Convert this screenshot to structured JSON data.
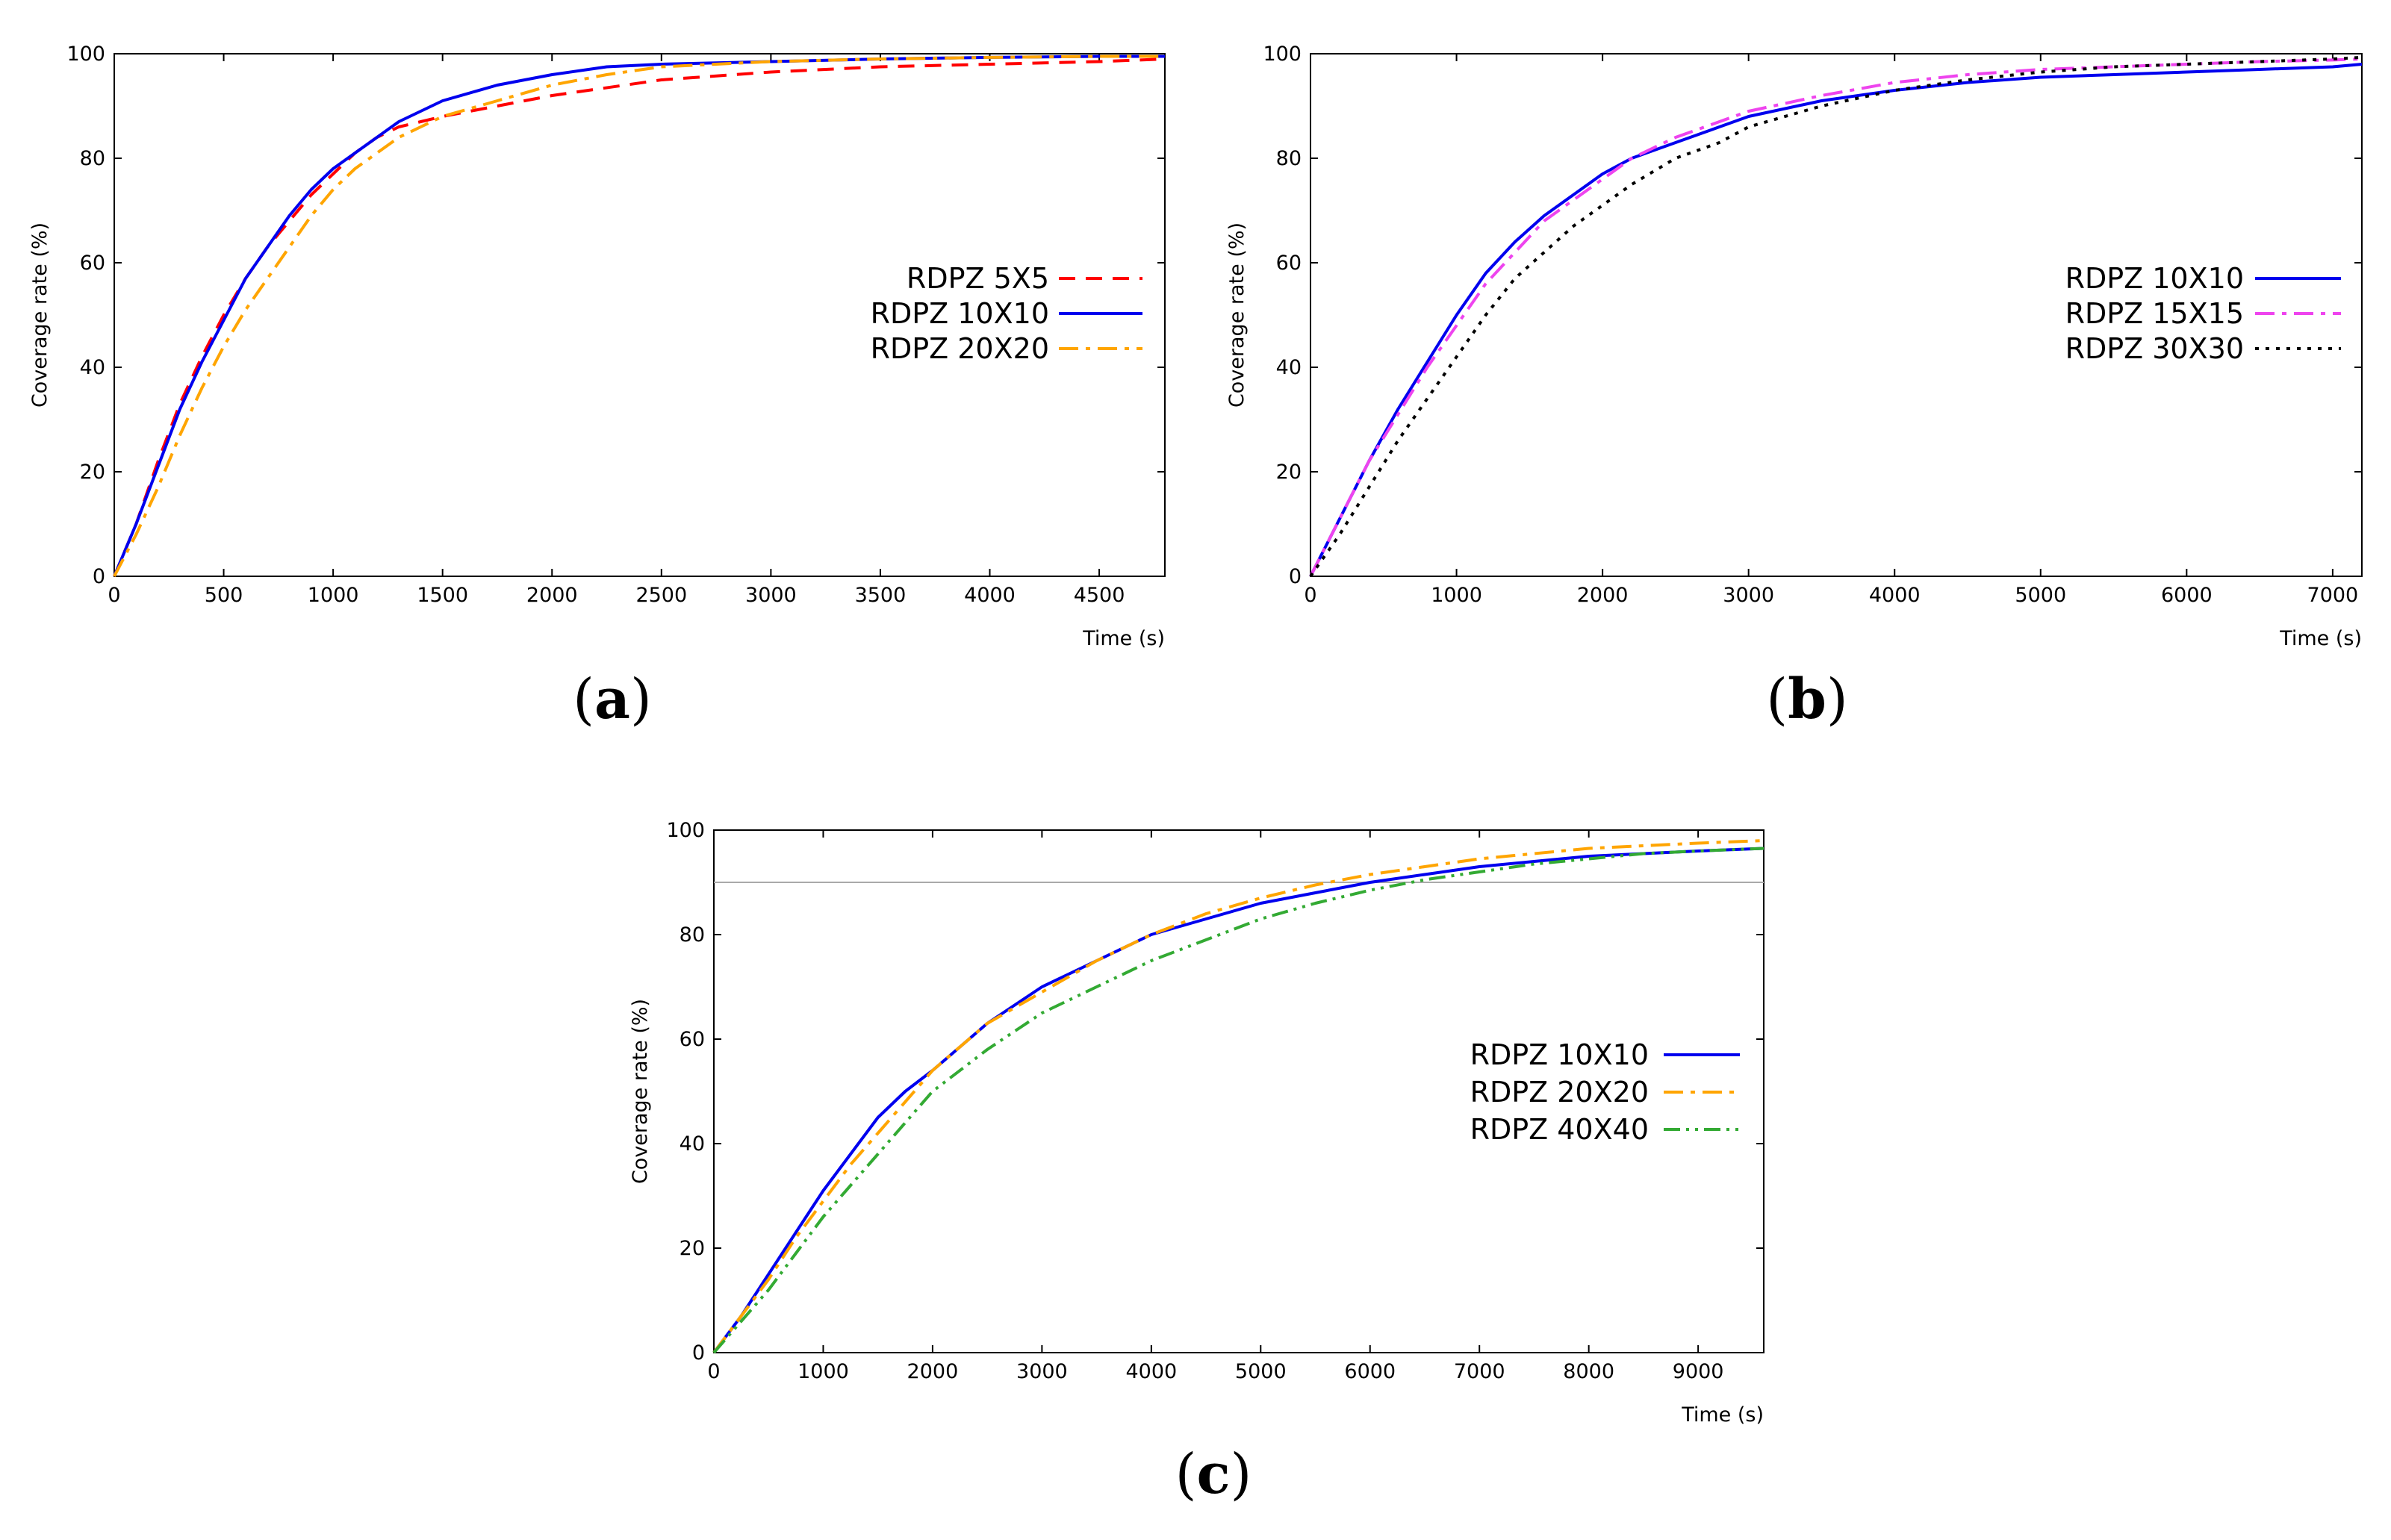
{
  "chart_data": [
    {
      "type": "line",
      "panel_label": "a",
      "xlabel": "Time (s)",
      "ylabel": "Coverage rate (%)",
      "xlim": [
        0,
        4800
      ],
      "ylim": [
        0,
        100
      ],
      "xticks": [
        0,
        500,
        1000,
        1500,
        2000,
        2500,
        3000,
        3500,
        4000,
        4500
      ],
      "yticks": [
        0,
        20,
        40,
        60,
        80,
        100
      ],
      "grid": false,
      "legend_position": "center-right",
      "reference_line": null,
      "series": [
        {
          "name": "RDPZ 5X5",
          "color": "#ff0000",
          "style": "dashed",
          "x": [
            0,
            100,
            200,
            300,
            400,
            500,
            600,
            700,
            800,
            900,
            1000,
            1100,
            1200,
            1300,
            1400,
            1500,
            1750,
            2000,
            2500,
            3000,
            3500,
            4000,
            4500,
            4800
          ],
          "y": [
            0,
            10,
            22,
            33,
            42,
            50,
            57,
            63,
            68,
            73,
            77,
            81,
            84,
            86,
            87,
            88,
            90,
            92,
            95,
            96.5,
            97.5,
            98,
            98.5,
            99
          ]
        },
        {
          "name": "RDPZ 10X10",
          "color": "#0000ee",
          "style": "solid",
          "x": [
            0,
            100,
            200,
            300,
            400,
            500,
            600,
            700,
            800,
            900,
            1000,
            1100,
            1200,
            1300,
            1400,
            1500,
            1750,
            2000,
            2250,
            2500,
            3000,
            3500,
            4000,
            4500,
            4800
          ],
          "y": [
            0,
            10,
            21,
            32,
            41,
            49,
            57,
            63,
            69,
            74,
            78,
            81,
            84,
            87,
            89,
            91,
            94,
            96,
            97.5,
            98,
            98.5,
            99,
            99.3,
            99.5,
            99.5
          ]
        },
        {
          "name": "RDPZ 20X20",
          "color": "#ffa500",
          "style": "dashdot",
          "x": [
            0,
            100,
            200,
            300,
            400,
            500,
            600,
            700,
            800,
            900,
            1000,
            1100,
            1200,
            1300,
            1400,
            1500,
            1750,
            2000,
            2250,
            2500,
            3000,
            3500,
            4000,
            4500,
            4800
          ],
          "y": [
            0,
            8,
            17,
            27,
            36,
            44,
            51,
            57,
            63,
            69,
            74,
            78,
            81,
            84,
            86,
            88,
            91,
            94,
            96,
            97.5,
            98.5,
            99,
            99.3,
            99.5,
            99.5
          ]
        }
      ]
    },
    {
      "type": "line",
      "panel_label": "b",
      "xlabel": "Time (s)",
      "ylabel": "Coverage rate (%)",
      "xlim": [
        0,
        7200
      ],
      "ylim": [
        0,
        100
      ],
      "xticks": [
        0,
        1000,
        2000,
        3000,
        4000,
        5000,
        6000,
        7000
      ],
      "yticks": [
        0,
        20,
        40,
        60,
        80,
        100
      ],
      "grid": false,
      "legend_position": "center-right",
      "reference_line": null,
      "series": [
        {
          "name": "RDPZ 10X10",
          "color": "#0000ee",
          "style": "solid",
          "x": [
            0,
            200,
            400,
            600,
            800,
            1000,
            1200,
            1400,
            1600,
            1800,
            2000,
            2200,
            2500,
            2800,
            3000,
            3500,
            4000,
            4500,
            5000,
            5500,
            6000,
            6500,
            7000,
            7200
          ],
          "y": [
            0,
            11,
            22,
            32,
            41,
            50,
            58,
            64,
            69,
            73,
            77,
            80,
            83,
            86,
            88,
            91,
            93,
            94.5,
            95.5,
            96,
            96.5,
            97,
            97.5,
            98
          ]
        },
        {
          "name": "RDPZ 15X15",
          "color": "#ee44ee",
          "style": "dashdot",
          "x": [
            0,
            200,
            400,
            600,
            800,
            1000,
            1200,
            1400,
            1600,
            1800,
            2000,
            2200,
            2500,
            2800,
            3000,
            3500,
            4000,
            4500,
            5000,
            5500,
            6000,
            6500,
            7000,
            7200
          ],
          "y": [
            0,
            11,
            22,
            31,
            40,
            48,
            56,
            62,
            68,
            72,
            76,
            80,
            84,
            87,
            89,
            92,
            94.5,
            96,
            97,
            97.5,
            98,
            98.5,
            98.8,
            99
          ]
        },
        {
          "name": "RDPZ 30X30",
          "color": "#000000",
          "style": "dotted",
          "x": [
            0,
            200,
            400,
            600,
            800,
            1000,
            1200,
            1400,
            1600,
            1800,
            2000,
            2200,
            2500,
            2800,
            3000,
            3500,
            4000,
            4500,
            5000,
            5500,
            6000,
            6500,
            7000,
            7200
          ],
          "y": [
            0,
            8,
            17,
            26,
            34,
            42,
            50,
            57,
            62,
            67,
            71,
            75,
            80,
            83,
            86,
            90,
            93,
            95,
            96.5,
            97.5,
            98,
            98.5,
            99,
            99.3
          ]
        }
      ]
    },
    {
      "type": "line",
      "panel_label": "c",
      "xlabel": "Time (s)",
      "ylabel": "Coverage rate (%)",
      "xlim": [
        0,
        9600
      ],
      "ylim": [
        0,
        100
      ],
      "xticks": [
        0,
        1000,
        2000,
        3000,
        4000,
        5000,
        6000,
        7000,
        8000,
        9000
      ],
      "yticks": [
        0,
        20,
        40,
        60,
        80,
        100
      ],
      "grid": false,
      "legend_position": "center-right",
      "reference_line": 90,
      "series": [
        {
          "name": "RDPZ 10X10",
          "color": "#0000ee",
          "style": "solid",
          "x": [
            0,
            250,
            500,
            750,
            1000,
            1250,
            1500,
            1750,
            2000,
            2500,
            3000,
            3500,
            4000,
            4500,
            5000,
            5500,
            6000,
            6500,
            7000,
            7500,
            8000,
            8500,
            9000,
            9600
          ],
          "y": [
            0,
            7,
            15,
            23,
            31,
            38,
            45,
            50,
            54,
            63,
            70,
            75,
            80,
            83,
            86,
            88,
            90,
            91.5,
            93,
            94,
            95,
            95.5,
            96,
            96.5
          ]
        },
        {
          "name": "RDPZ 20X20",
          "color": "#ffa500",
          "style": "dashdot",
          "x": [
            0,
            250,
            500,
            750,
            1000,
            1250,
            1500,
            1750,
            2000,
            2500,
            3000,
            3500,
            4000,
            4500,
            5000,
            5500,
            6000,
            6500,
            7000,
            7500,
            8000,
            8500,
            9000,
            9600
          ],
          "y": [
            0,
            7,
            14,
            22,
            29,
            36,
            42,
            48,
            54,
            63,
            69,
            75,
            80,
            84,
            87,
            89.5,
            91.5,
            93,
            94.5,
            95.5,
            96.5,
            97,
            97.5,
            98
          ]
        },
        {
          "name": "RDPZ 40X40",
          "color": "#33aa33",
          "style": "dashdotdot",
          "x": [
            0,
            250,
            500,
            750,
            1000,
            1250,
            1500,
            1750,
            2000,
            2500,
            3000,
            3500,
            4000,
            4500,
            5000,
            5500,
            6000,
            6500,
            7000,
            7500,
            8000,
            8500,
            9000,
            9600
          ],
          "y": [
            0,
            6,
            12,
            19,
            26,
            32,
            38,
            44,
            50,
            58,
            65,
            70,
            75,
            79,
            83,
            86,
            88.5,
            90.5,
            92,
            93.5,
            94.5,
            95.5,
            96,
            96.5
          ]
        }
      ]
    }
  ]
}
